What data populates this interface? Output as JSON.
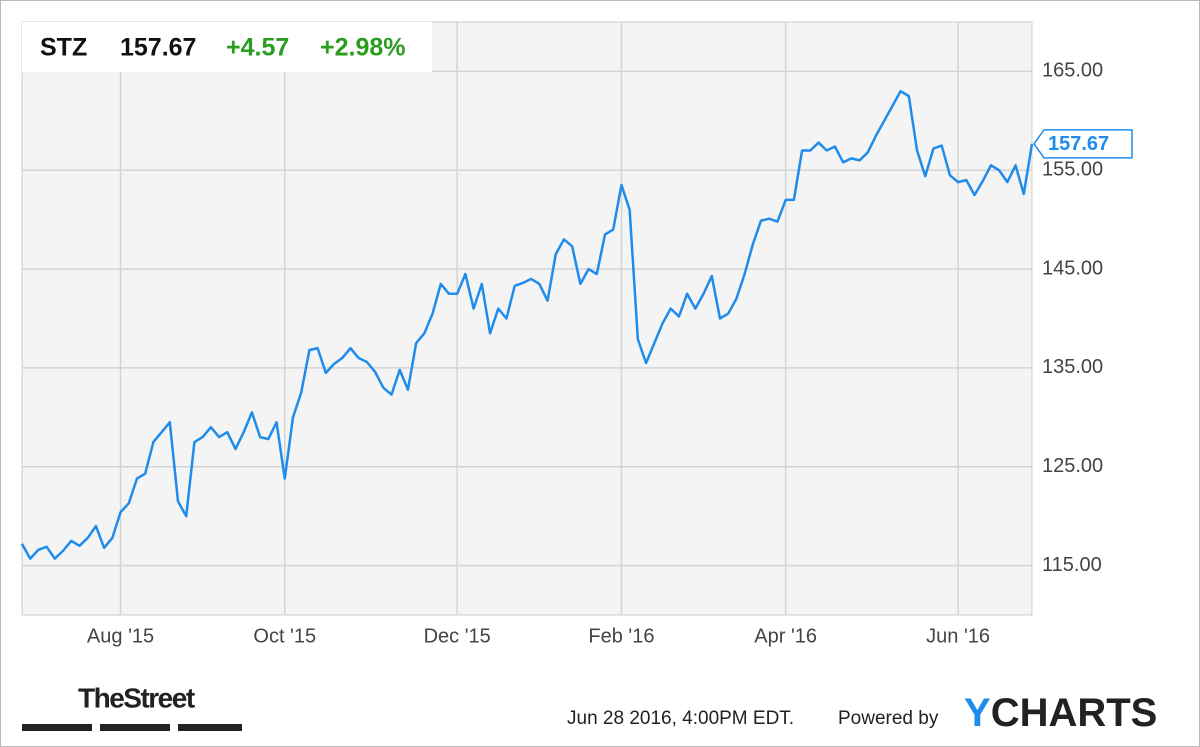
{
  "chart_data": {
    "type": "line",
    "ticker": "STZ",
    "last_price": 157.67,
    "change": "+4.57",
    "change_percent": "+2.98%",
    "categories": [
      null,
      null,
      null,
      null,
      null,
      null,
      null,
      null,
      null,
      null,
      null,
      null,
      "Aug '15",
      null,
      null,
      null,
      null,
      null,
      null,
      null,
      null,
      null,
      null,
      null,
      null,
      null,
      null,
      null,
      null,
      null,
      null,
      null,
      "Oct '15",
      null,
      null,
      null,
      null,
      null,
      null,
      null,
      null,
      null,
      null,
      null,
      null,
      null,
      null,
      null,
      null,
      null,
      null,
      null,
      null,
      "Dec '15",
      null,
      null,
      null,
      null,
      null,
      null,
      null,
      null,
      null,
      null,
      null,
      null,
      null,
      null,
      null,
      null,
      null,
      null,
      null,
      "Feb '16",
      null,
      null,
      null,
      null,
      null,
      null,
      null,
      null,
      null,
      null,
      null,
      null,
      null,
      null,
      null,
      null,
      null,
      null,
      null,
      "Apr '16",
      null,
      null,
      null,
      null,
      null,
      null,
      null,
      null,
      null,
      null,
      null,
      null,
      null,
      null,
      null,
      null,
      null,
      null,
      null,
      null,
      "Jun '16",
      null,
      null,
      null,
      null,
      null,
      null,
      null,
      null,
      null
    ],
    "series": [
      {
        "color": "#1f8ceb",
        "values": [
          117.2,
          115.7,
          116.6,
          116.9,
          115.7,
          116.5,
          117.5,
          117.0,
          117.8,
          119.0,
          116.8,
          117.8,
          120.4,
          121.3,
          123.8,
          124.3,
          127.5,
          128.5,
          129.5,
          121.5,
          120.0,
          127.5,
          128.0,
          129.0,
          128.0,
          128.5,
          126.8,
          128.5,
          130.5,
          128.0,
          127.8,
          129.5,
          123.8,
          130.0,
          132.5,
          136.8,
          137.0,
          134.5,
          135.4,
          136.0,
          137.0,
          136.0,
          135.6,
          134.6,
          133.0,
          132.3,
          134.8,
          132.8,
          137.5,
          138.5,
          140.5,
          143.5,
          142.5,
          142.5,
          144.5,
          141.0,
          143.5,
          138.5,
          141.0,
          140.0,
          143.3,
          143.6,
          144.0,
          143.5,
          141.8,
          146.5,
          148.0,
          147.3,
          143.5,
          145.0,
          144.5,
          148.5,
          149.0,
          153.5,
          151.0,
          137.9,
          135.5,
          137.5,
          139.5,
          141.0,
          140.2,
          142.5,
          141.0,
          142.5,
          144.3,
          140.0,
          140.5,
          142.0,
          144.5,
          147.5,
          149.9,
          150.1,
          149.8,
          152.0,
          152.0,
          157.0,
          157.0,
          157.8,
          157.0,
          157.4,
          155.8,
          156.2,
          156.0,
          156.8,
          158.5,
          160.0,
          161.5,
          163.0,
          162.5,
          157.0,
          154.4,
          157.2,
          157.5,
          154.5,
          153.8,
          154.0,
          152.5,
          153.9,
          155.5,
          155.0,
          153.8,
          155.5,
          152.6,
          157.67
        ]
      }
    ],
    "ylim": [
      110,
      170
    ],
    "yticks": [
      {
        "value": 115,
        "label": "115.00"
      },
      {
        "value": 125,
        "label": "125.00"
      },
      {
        "value": 135,
        "label": "135.00"
      },
      {
        "value": 145,
        "label": "145.00"
      },
      {
        "value": 155,
        "label": "155.00"
      },
      {
        "value": 165,
        "label": "165.00"
      }
    ],
    "grid": true,
    "timestamp": "Jun 28 2016, 4:00PM EDT.",
    "powered_by": "Powered by",
    "brand_y": "Y",
    "brand_rest": "CHARTS",
    "source": "TheStreet"
  }
}
